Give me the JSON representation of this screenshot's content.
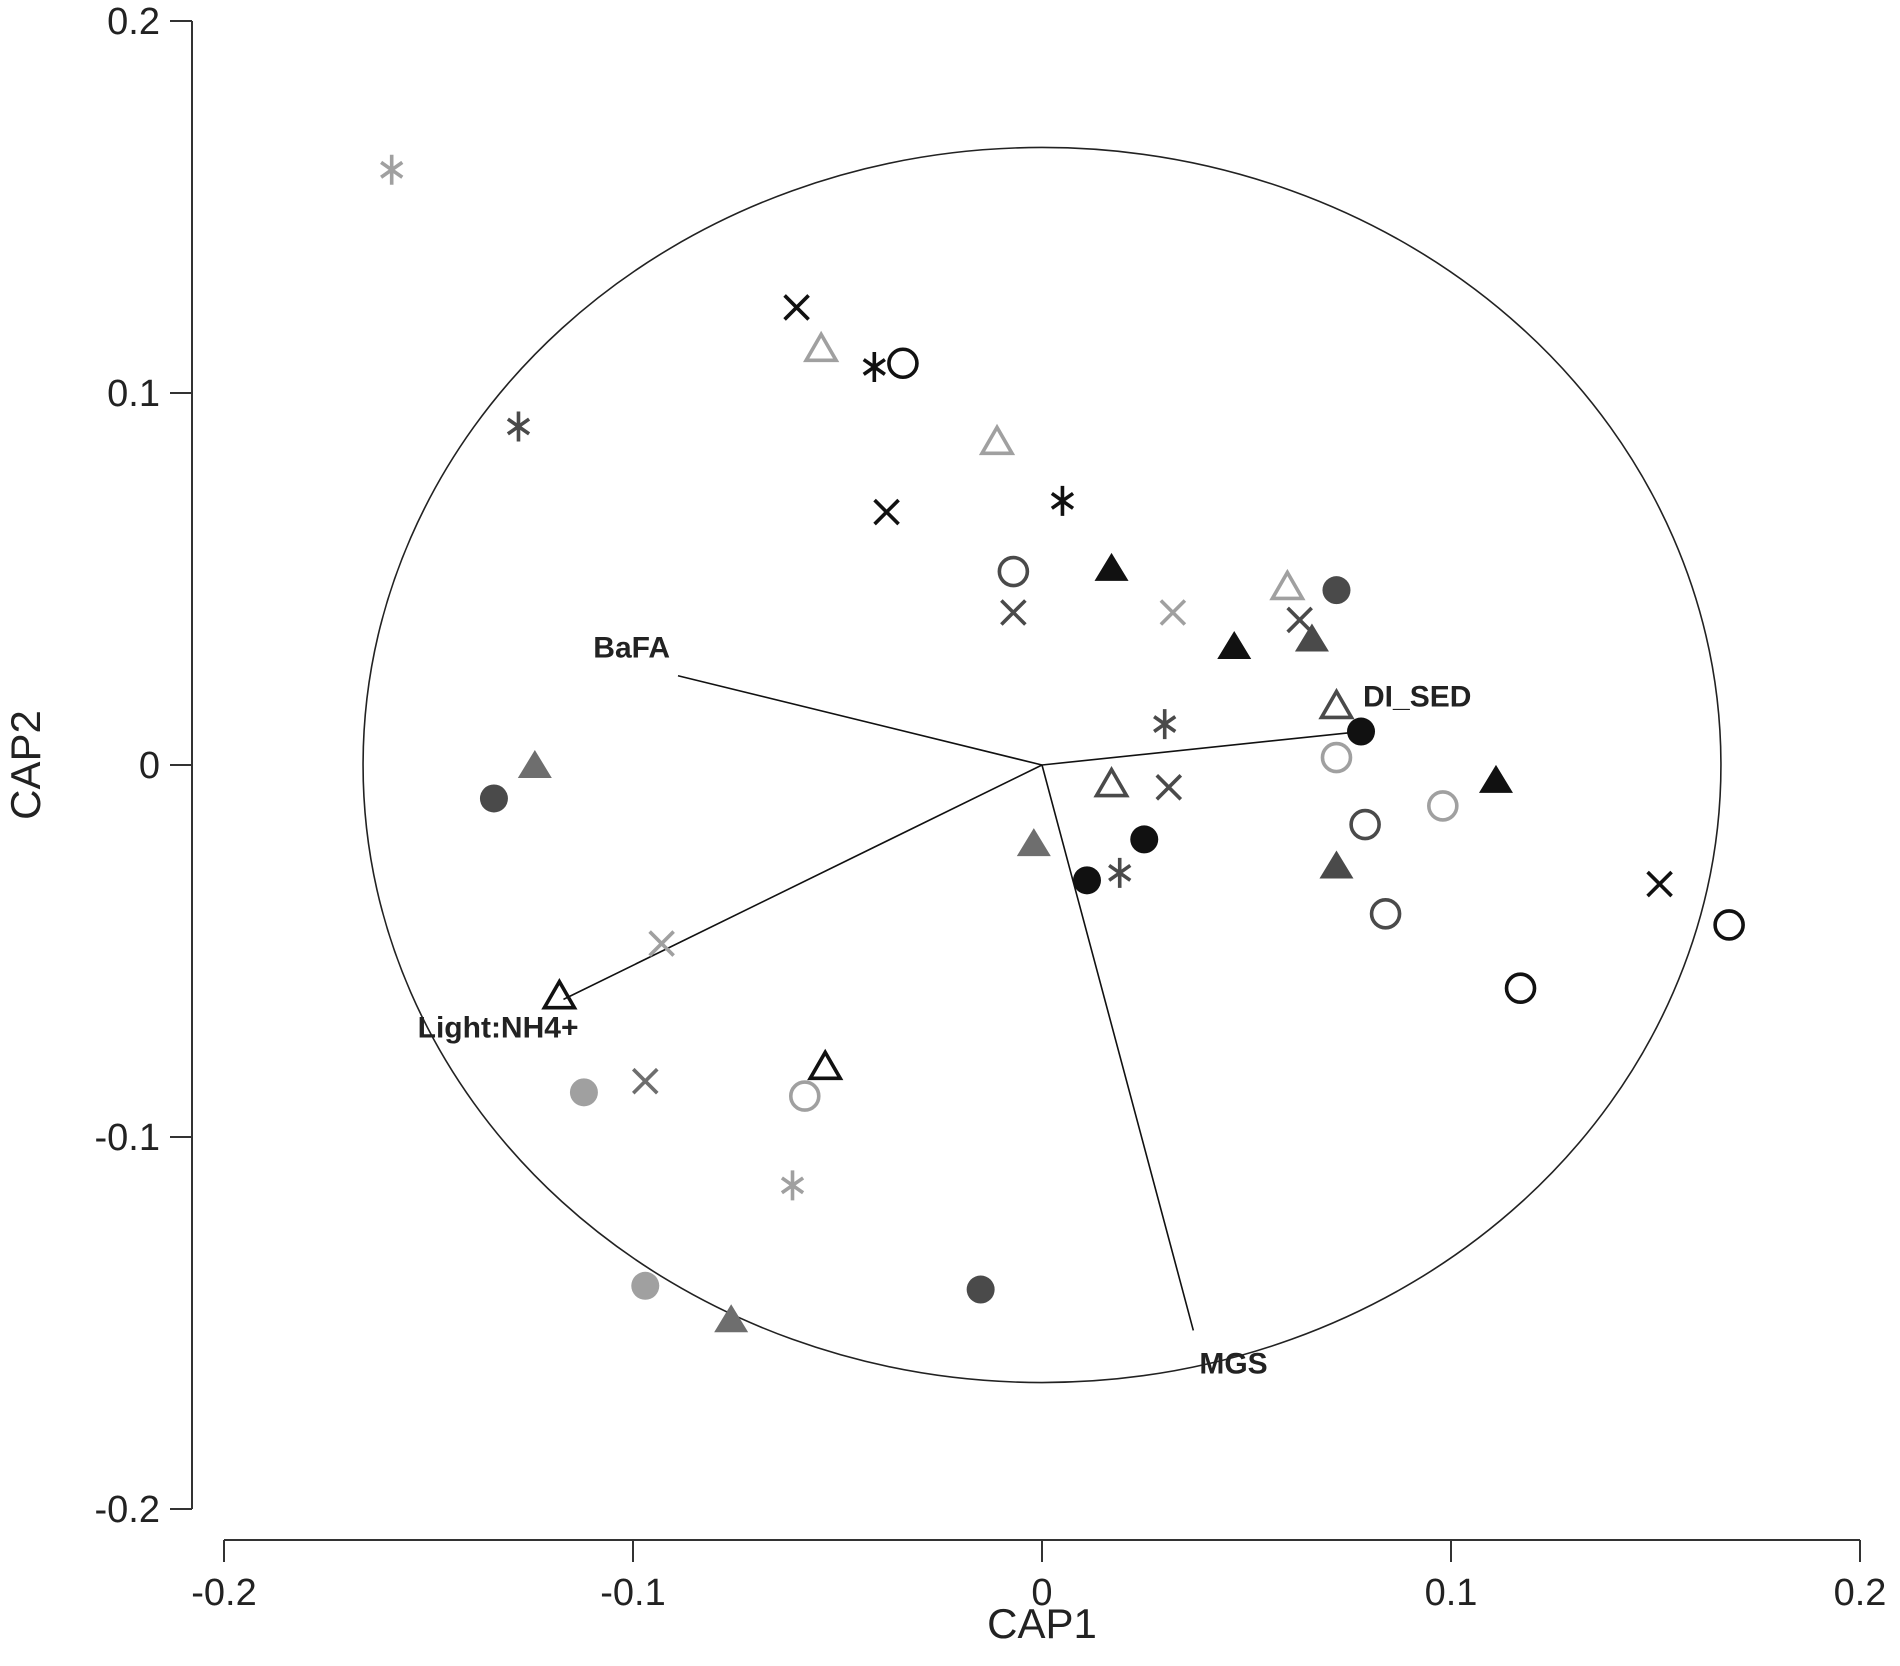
{
  "chart_data": {
    "type": "scatter",
    "title": "",
    "xlabel": "CAP1",
    "ylabel": "CAP2",
    "xlim": [
      -0.2,
      0.2
    ],
    "ylim": [
      -0.2,
      0.2
    ],
    "x_ticks": [
      -0.2,
      -0.1,
      0,
      0.1,
      0.2
    ],
    "y_ticks": [
      -0.2,
      -0.1,
      0,
      0.1,
      0.2
    ],
    "x_tick_labels": [
      "-0.2",
      "-0.1",
      "0",
      "0.1",
      "0.2"
    ],
    "y_tick_labels": [
      "-0.2",
      "-0.1",
      "0",
      "0.1",
      "0.2"
    ],
    "grid": false,
    "correlation_circle": {
      "center": [
        0,
        0
      ],
      "radius": 0.166
    },
    "vectors": [
      {
        "label": "BaFA",
        "x": -0.089,
        "y": 0.024
      },
      {
        "label": "DI_SED",
        "x": 0.078,
        "y": 0.009
      },
      {
        "label": "Light:NH4+",
        "x": -0.117,
        "y": -0.063
      },
      {
        "label": "MGS",
        "x": 0.037,
        "y": -0.152
      }
    ],
    "colors": {
      "black": "#111111",
      "darkgray": "#4a4a4a",
      "gray": "#6e6e6e",
      "lightgray": "#a0a0a0"
    },
    "points": [
      {
        "marker": "asterisk",
        "color": "lightgray",
        "x": -0.159,
        "y": 0.16
      },
      {
        "marker": "asterisk",
        "color": "darkgray",
        "x": -0.128,
        "y": 0.091
      },
      {
        "marker": "cross",
        "color": "black",
        "x": -0.06,
        "y": 0.123
      },
      {
        "marker": "triangle-open",
        "color": "lightgray",
        "x": -0.054,
        "y": 0.112
      },
      {
        "marker": "asterisk",
        "color": "black",
        "x": -0.041,
        "y": 0.107
      },
      {
        "marker": "circle-open",
        "color": "black",
        "x": -0.034,
        "y": 0.108
      },
      {
        "marker": "triangle-open",
        "color": "lightgray",
        "x": -0.011,
        "y": 0.087
      },
      {
        "marker": "cross",
        "color": "black",
        "x": -0.038,
        "y": 0.068
      },
      {
        "marker": "asterisk",
        "color": "black",
        "x": 0.005,
        "y": 0.071
      },
      {
        "marker": "circle-open",
        "color": "darkgray",
        "x": -0.007,
        "y": 0.052
      },
      {
        "marker": "cross",
        "color": "darkgray",
        "x": -0.007,
        "y": 0.041
      },
      {
        "marker": "triangle-filled",
        "color": "black",
        "x": 0.017,
        "y": 0.053
      },
      {
        "marker": "cross",
        "color": "lightgray",
        "x": 0.032,
        "y": 0.041
      },
      {
        "marker": "triangle-filled",
        "color": "black",
        "x": 0.047,
        "y": 0.032
      },
      {
        "marker": "triangle-open",
        "color": "lightgray",
        "x": 0.06,
        "y": 0.048
      },
      {
        "marker": "cross",
        "color": "darkgray",
        "x": 0.063,
        "y": 0.039
      },
      {
        "marker": "circle-filled",
        "color": "darkgray",
        "x": 0.072,
        "y": 0.047
      },
      {
        "marker": "triangle-filled",
        "color": "darkgray",
        "x": 0.066,
        "y": 0.034
      },
      {
        "marker": "triangle-open",
        "color": "darkgray",
        "x": 0.072,
        "y": 0.016
      },
      {
        "marker": "circle-filled",
        "color": "black",
        "x": 0.078,
        "y": 0.009
      },
      {
        "marker": "asterisk",
        "color": "darkgray",
        "x": 0.03,
        "y": 0.011
      },
      {
        "marker": "circle-open",
        "color": "lightgray",
        "x": 0.072,
        "y": 0.002
      },
      {
        "marker": "triangle-open",
        "color": "darkgray",
        "x": 0.017,
        "y": -0.005
      },
      {
        "marker": "cross",
        "color": "darkgray",
        "x": 0.031,
        "y": -0.006
      },
      {
        "marker": "circle-open",
        "color": "lightgray",
        "x": 0.098,
        "y": -0.011
      },
      {
        "marker": "triangle-filled",
        "color": "black",
        "x": 0.111,
        "y": -0.004
      },
      {
        "marker": "circle-open",
        "color": "darkgray",
        "x": 0.079,
        "y": -0.016
      },
      {
        "marker": "circle-filled",
        "color": "black",
        "x": 0.025,
        "y": -0.02
      },
      {
        "marker": "triangle-filled",
        "color": "gray",
        "x": -0.002,
        "y": -0.021
      },
      {
        "marker": "circle-filled",
        "color": "black",
        "x": 0.011,
        "y": -0.031
      },
      {
        "marker": "asterisk",
        "color": "darkgray",
        "x": 0.019,
        "y": -0.029
      },
      {
        "marker": "triangle-filled",
        "color": "darkgray",
        "x": 0.072,
        "y": -0.027
      },
      {
        "marker": "circle-open",
        "color": "darkgray",
        "x": 0.084,
        "y": -0.04
      },
      {
        "marker": "cross",
        "color": "black",
        "x": 0.151,
        "y": -0.032
      },
      {
        "marker": "circle-open",
        "color": "black",
        "x": 0.168,
        "y": -0.043
      },
      {
        "marker": "circle-open",
        "color": "black",
        "x": 0.117,
        "y": -0.06
      },
      {
        "marker": "triangle-filled",
        "color": "gray",
        "x": -0.124,
        "y": 0.0
      },
      {
        "marker": "circle-filled",
        "color": "darkgray",
        "x": -0.134,
        "y": -0.009
      },
      {
        "marker": "cross",
        "color": "lightgray",
        "x": -0.093,
        "y": -0.048
      },
      {
        "marker": "triangle-open",
        "color": "black",
        "x": -0.118,
        "y": -0.062
      },
      {
        "marker": "triangle-open",
        "color": "black",
        "x": -0.053,
        "y": -0.081
      },
      {
        "marker": "cross",
        "color": "gray",
        "x": -0.097,
        "y": -0.085
      },
      {
        "marker": "circle-filled",
        "color": "lightgray",
        "x": -0.112,
        "y": -0.088
      },
      {
        "marker": "circle-open",
        "color": "lightgray",
        "x": -0.058,
        "y": -0.089
      },
      {
        "marker": "asterisk",
        "color": "lightgray",
        "x": -0.061,
        "y": -0.113
      },
      {
        "marker": "circle-filled",
        "color": "lightgray",
        "x": -0.097,
        "y": -0.14
      },
      {
        "marker": "triangle-filled",
        "color": "gray",
        "x": -0.076,
        "y": -0.149
      },
      {
        "marker": "circle-filled",
        "color": "darkgray",
        "x": -0.015,
        "y": -0.141
      }
    ]
  }
}
